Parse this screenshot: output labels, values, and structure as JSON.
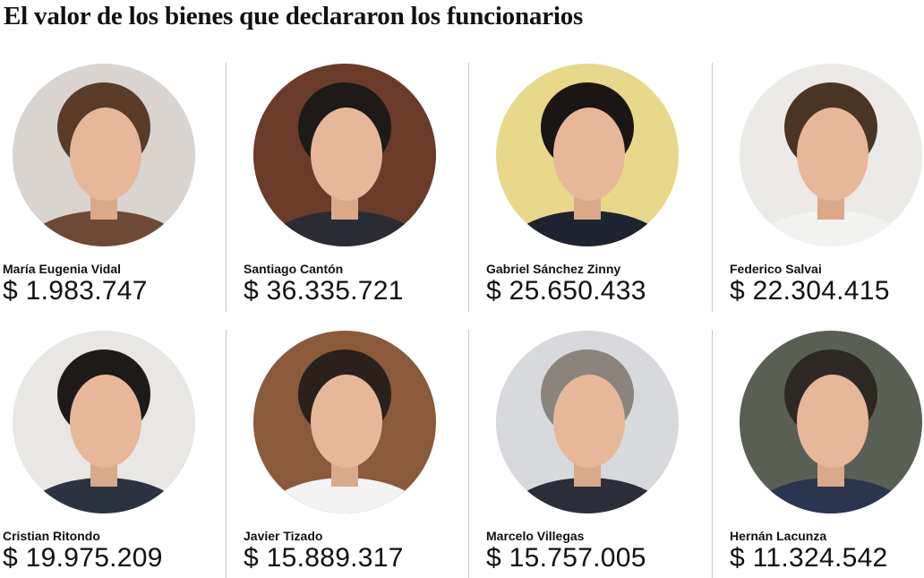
{
  "title": "El valor de los bienes que declararon los funcionarios",
  "people": [
    {
      "name": "María Eugenia Vidal",
      "amount": "$ 1.983.747"
    },
    {
      "name": "Santiago Cantón",
      "amount": "$ 36.335.721"
    },
    {
      "name": "Gabriel Sánchez Zinny",
      "amount": "$ 25.650.433"
    },
    {
      "name": "Federico Salvai",
      "amount": "$ 22.304.415"
    },
    {
      "name": "Cristian Ritondo",
      "amount": "$ 19.975.209"
    },
    {
      "name": "Javier Tizado",
      "amount": "$ 15.889.317"
    },
    {
      "name": "Marcelo Villegas",
      "amount": "$ 15.757.005"
    },
    {
      "name": "Hernán Lacunza",
      "amount": "$ 11.324.542"
    }
  ]
}
